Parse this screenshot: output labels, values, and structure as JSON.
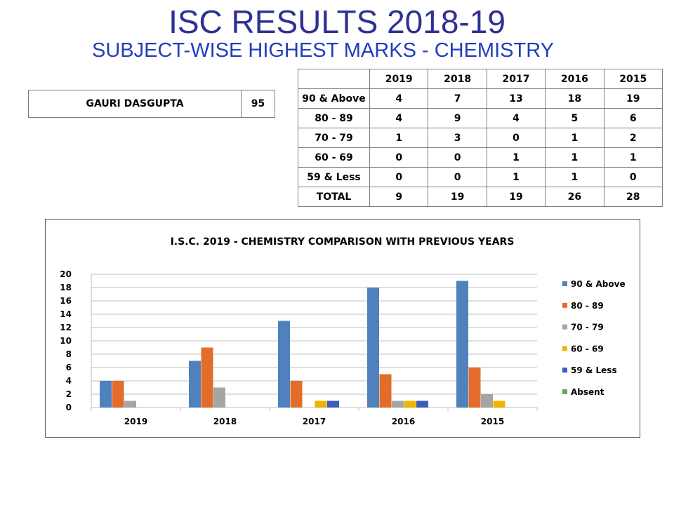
{
  "header": {
    "title": "ISC RESULTS 2018-19",
    "subtitle": "SUBJECT-WISE HIGHEST MARKS - CHEMISTRY"
  },
  "topper": {
    "name": "GAURI DASGUPTA",
    "marks": "95"
  },
  "results_table": {
    "columns": [
      "2019",
      "2018",
      "2017",
      "2016",
      "2015"
    ],
    "rows": [
      {
        "label": "90 & Above",
        "values": [
          "4",
          "7",
          "13",
          "18",
          "19"
        ]
      },
      {
        "label": "80 - 89",
        "values": [
          "4",
          "9",
          "4",
          "5",
          "6"
        ]
      },
      {
        "label": "70 - 79",
        "values": [
          "1",
          "3",
          "0",
          "1",
          "2"
        ]
      },
      {
        "label": "60 - 69",
        "values": [
          "0",
          "0",
          "1",
          "1",
          "1"
        ]
      },
      {
        "label": "59 & Less",
        "values": [
          "0",
          "0",
          "1",
          "1",
          "0"
        ]
      },
      {
        "label": "TOTAL",
        "values": [
          "9",
          "19",
          "19",
          "26",
          "28"
        ]
      }
    ]
  },
  "chart_data": {
    "type": "bar",
    "title": "I.S.C. 2019 - CHEMISTRY COMPARISON WITH PREVIOUS YEARS",
    "categories": [
      "2019",
      "2018",
      "2017",
      "2016",
      "2015"
    ],
    "series": [
      {
        "name": "90 & Above",
        "color": "#4f81bd",
        "values": [
          4,
          7,
          13,
          18,
          19
        ]
      },
      {
        "name": "80 - 89",
        "color": "#e36c2a",
        "values": [
          4,
          9,
          4,
          5,
          6
        ]
      },
      {
        "name": "70 - 79",
        "color": "#a5a5a5",
        "values": [
          1,
          3,
          0,
          1,
          2
        ]
      },
      {
        "name": "60 - 69",
        "color": "#f2b300",
        "values": [
          0,
          0,
          1,
          1,
          1
        ]
      },
      {
        "name": "59 & Less",
        "color": "#3a5eba",
        "values": [
          0,
          0,
          1,
          1,
          0
        ]
      },
      {
        "name": "Absent",
        "color": "#6aa84f",
        "values": [
          0,
          0,
          0,
          0,
          0
        ]
      }
    ],
    "ylim": [
      0,
      20
    ],
    "yticks": [
      0,
      2,
      4,
      6,
      8,
      10,
      12,
      14,
      16,
      18,
      20
    ],
    "grid": true,
    "legend_position": "right",
    "xlabel": "",
    "ylabel": ""
  }
}
